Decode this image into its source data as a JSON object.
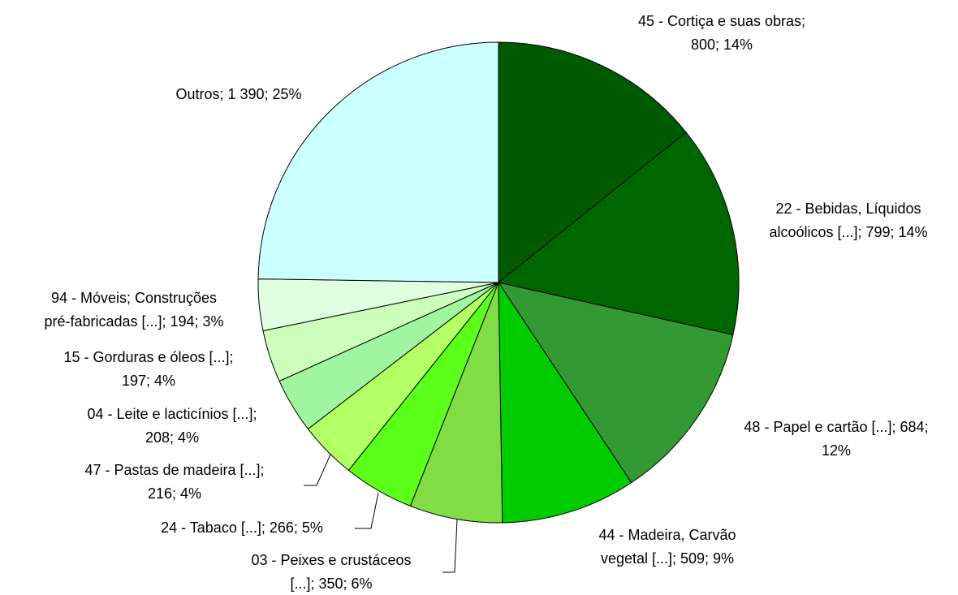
{
  "chart_data": {
    "type": "pie",
    "labels": [
      [
        "45 - Cortiça e suas obras;",
        "800; 14%"
      ],
      [
        "22 - Bebidas, Líquidos",
        "alcoólicos [...]; 799; 14%"
      ],
      [
        "48 - Papel e cartão [...]; 684;",
        "12%"
      ],
      [
        "44 - Madeira, Carvão",
        "vegetal [...]; 509; 9%"
      ],
      [
        "03 - Peixes e crustáceos",
        "[...]; 350; 6%"
      ],
      [
        "24 - Tabaco [...]; 266; 5%"
      ],
      [
        "47 - Pastas de madeira [...];",
        "216; 4%"
      ],
      [
        "04 - Leite e lacticínios [...];",
        "208; 4%"
      ],
      [
        "15 - Gorduras e óleos [...];",
        "197; 4%"
      ],
      [
        "94 - Móveis; Construções",
        "pré-fabricadas [...]; 194; 3%"
      ],
      [
        "Outros; 1 390; 25%"
      ]
    ],
    "values": [
      800,
      799,
      684,
      509,
      350,
      266,
      216,
      208,
      197,
      194,
      1390
    ],
    "colors": [
      "#005a00",
      "#006600",
      "#339933",
      "#00cc00",
      "#80dd44",
      "#5cff1a",
      "#b3ff66",
      "#a0f5a0",
      "#ccffbb",
      "#e0ffe0",
      "#ccffff"
    ]
  }
}
